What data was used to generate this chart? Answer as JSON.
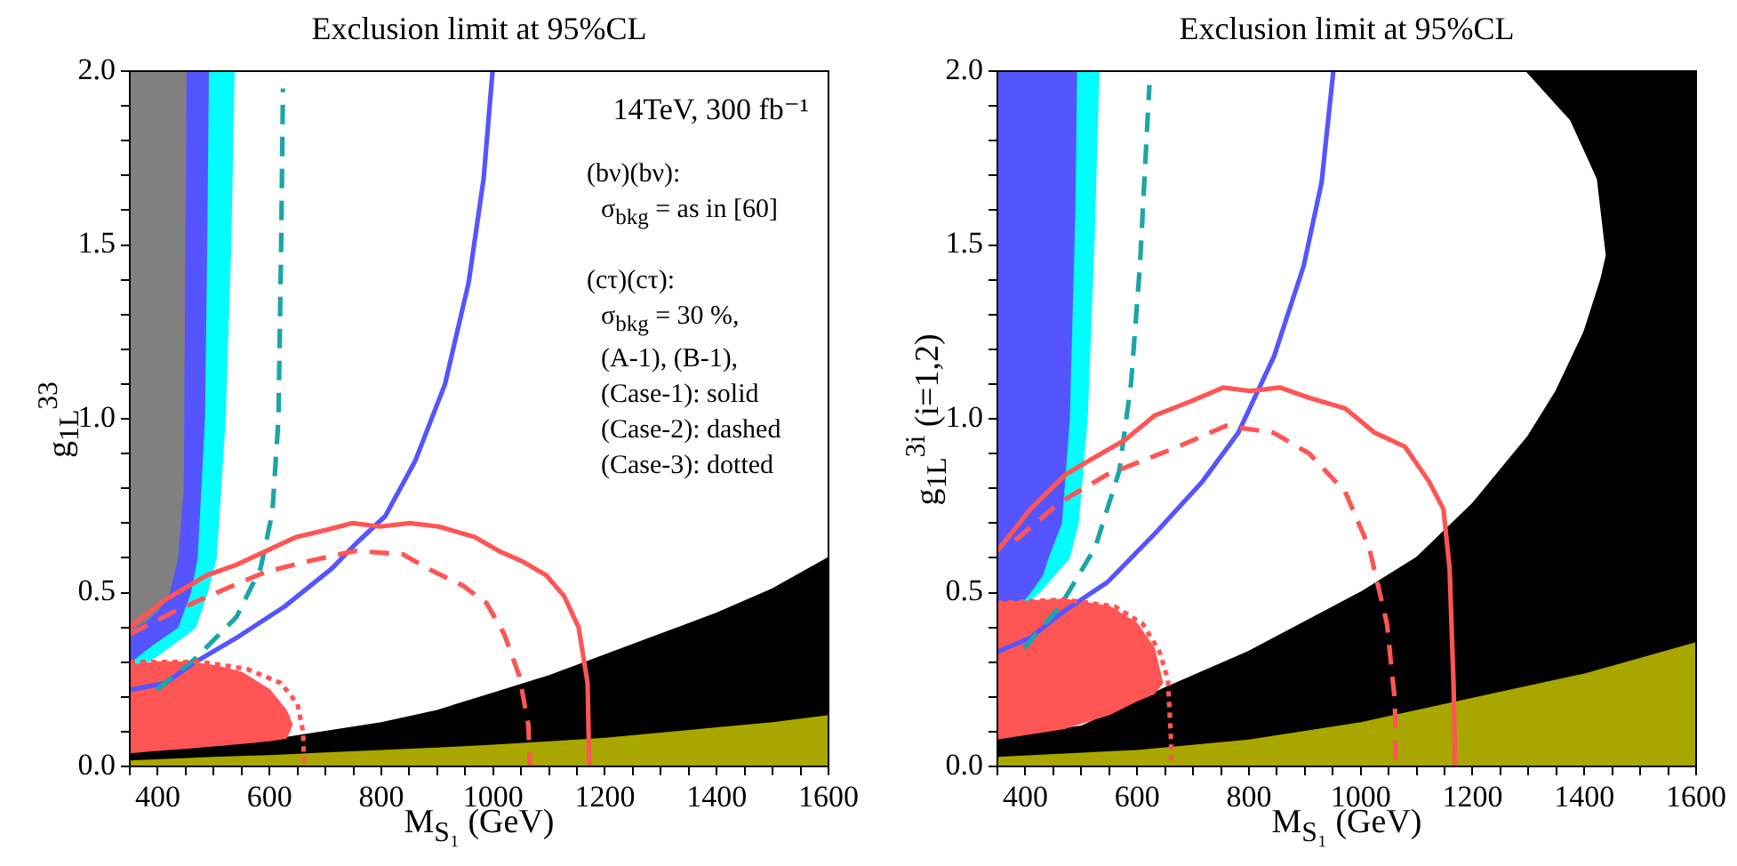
{
  "chart_data": [
    {
      "type": "line",
      "title": "Exclusion limit at 95%CL",
      "xlabel": "M$_{S₁}$  (GeV)",
      "ylabel": "g$_{1L}$$^{33}$",
      "xlim": [
        350,
        1600
      ],
      "ylim": [
        0,
        2
      ],
      "xticks": [
        {
          "value": 350,
          "label": null
        },
        400,
        {
          "value": 450,
          "label": null
        },
        {
          "value": 500,
          "label": null
        },
        {
          "value": 550,
          "label": null
        },
        600,
        {
          "value": 650,
          "label": null
        },
        {
          "value": 700,
          "label": null
        },
        {
          "value": 750,
          "label": null
        },
        800,
        {
          "value": 850,
          "label": null
        },
        {
          "value": 900,
          "label": null
        },
        {
          "value": 950,
          "label": null
        },
        1000,
        {
          "value": 1050,
          "label": null
        },
        {
          "value": 1100,
          "label": null
        },
        {
          "value": 1150,
          "label": null
        },
        1200,
        {
          "value": 1250,
          "label": null
        },
        {
          "value": 1300,
          "label": null
        },
        {
          "value": 1350,
          "label": null
        },
        1400,
        {
          "value": 1450,
          "label": null
        },
        {
          "value": 1500,
          "label": null
        },
        {
          "value": 1550,
          "label": null
        },
        1600
      ],
      "yticks": [
        {
          "value": 0,
          "label": "0.0"
        },
        {
          "value": 0.1,
          "label": null
        },
        {
          "value": 0.2,
          "label": null
        },
        {
          "value": 0.3,
          "label": null
        },
        {
          "value": 0.4,
          "label": null
        },
        {
          "value": 0.5,
          "label": "0.5"
        },
        {
          "value": 0.6,
          "label": null
        },
        {
          "value": 0.7,
          "label": null
        },
        {
          "value": 0.8,
          "label": null
        },
        {
          "value": 0.9,
          "label": null
        },
        {
          "value": 1,
          "label": "1.0"
        },
        {
          "value": 1.1,
          "label": null
        },
        {
          "value": 1.2,
          "label": null
        },
        {
          "value": 1.3,
          "label": null
        },
        {
          "value": 1.4,
          "label": null
        },
        {
          "value": 1.5,
          "label": "1.5"
        },
        {
          "value": 1.6,
          "label": null
        },
        {
          "value": 1.7,
          "label": null
        },
        {
          "value": 1.8,
          "label": null
        },
        {
          "value": 1.9,
          "label": null
        },
        {
          "value": 2,
          "label": "2.0"
        }
      ],
      "annotations": [
        "14TeV, 300 fb⁻¹",
        "(bν)(bν):",
        "σ$_{bkg}$ = as in [60]",
        "(cτ)(cτ):",
        "σ$_{bkg}$ = 30 %,",
        "(A-1), (B-1),",
        "(Case-1): solid",
        "(Case-2): dashed",
        "(Case-3): dotted"
      ],
      "series": [
        {
          "type": "area",
          "color": "#aaa600",
          "x": [
            350,
            500,
            600,
            700,
            800,
            900,
            1000,
            1100,
            1200,
            1300,
            1400,
            1500,
            1600,
            1600,
            350
          ],
          "values": [
            0.02,
            0.03,
            0.035,
            0.043,
            0.05,
            0.057,
            0.065,
            0.075,
            0.085,
            0.1,
            0.115,
            0.13,
            0.15,
            0,
            0
          ]
        },
        {
          "type": "area",
          "color": "#000000",
          "x": [
            350,
            500,
            600,
            700,
            800,
            900,
            1000,
            1100,
            1200,
            1300,
            1400,
            1500,
            1600,
            1600,
            1500,
            1400,
            1300,
            1200,
            1100,
            1000,
            900,
            800,
            700,
            600,
            500,
            350
          ],
          "values": [
            0.04,
            0.06,
            0.075,
            0.1,
            0.125,
            0.16,
            0.21,
            0.26,
            0.32,
            0.38,
            0.44,
            0.51,
            0.6,
            0.15,
            0.13,
            0.115,
            0.1,
            0.085,
            0.075,
            0.065,
            0.057,
            0.05,
            0.043,
            0.035,
            0.03,
            0.02
          ]
        },
        {
          "type": "area",
          "color": "#00ffff",
          "x": [
            350,
            536,
            530,
            520,
            504,
            488,
            467,
            400,
            380,
            350
          ],
          "values": [
            2,
            2,
            1.5,
            1,
            0.6,
            0.5,
            0.4,
            0.32,
            0.3,
            0.28
          ]
        },
        {
          "type": "area",
          "color": "#5555ff",
          "x": [
            350,
            490,
            487,
            483,
            470,
            458,
            435,
            390,
            350
          ],
          "values": [
            2,
            2,
            1.5,
            1,
            0.6,
            0.5,
            0.4,
            0.35,
            0.3
          ]
        },
        {
          "type": "area",
          "color": "#808080",
          "x": [
            350,
            450,
            445,
            435,
            420,
            400,
            380,
            360,
            350
          ],
          "values": [
            2,
            2,
            0.8,
            0.6,
            0.5,
            0.45,
            0.42,
            0.4,
            0.38
          ]
        },
        {
          "type": "area",
          "color": "#ff5555",
          "x": [
            350,
            400,
            450,
            500,
            550,
            600,
            630,
            640,
            630,
            600,
            550,
            500,
            450,
            400,
            350
          ],
          "values": [
            0.29,
            0.3,
            0.3,
            0.29,
            0.27,
            0.22,
            0.16,
            0.12,
            0.082,
            0.075,
            0.067,
            0.06,
            0.053,
            0.047,
            0.04
          ]
        },
        {
          "type": "line",
          "color": "#5555ff",
          "line_style": "solid",
          "x": [
            350,
            414,
            467,
            541,
            627,
            712,
            754,
            807,
            861,
            914,
            956,
            983,
            999
          ],
          "values": [
            0.22,
            0.24,
            0.3,
            0.37,
            0.46,
            0.57,
            0.64,
            0.72,
            0.88,
            1.1,
            1.39,
            1.69,
            2
          ]
        },
        {
          "type": "line",
          "color": "#1aa6a6",
          "line_style": "dashed",
          "x": [
            398,
            467,
            541,
            584,
            605,
            616,
            621,
            624
          ],
          "values": [
            0.22,
            0.31,
            0.43,
            0.57,
            0.73,
            1,
            1.52,
            1.95
          ]
        },
        {
          "type": "line",
          "color": "#ff5555",
          "line_style": "solid",
          "x": [
            350,
            414,
            488,
            541,
            594,
            648,
            701,
            749,
            797,
            851,
            903,
            967,
            1010,
            1052,
            1095,
            1127,
            1153,
            1169,
            1172
          ],
          "values": [
            0.4,
            0.48,
            0.55,
            0.58,
            0.62,
            0.66,
            0.68,
            0.7,
            0.69,
            0.7,
            0.69,
            0.66,
            0.62,
            0.59,
            0.55,
            0.49,
            0.4,
            0.24,
            0
          ]
        },
        {
          "type": "line",
          "color": "#ff5555",
          "line_style": "dashed",
          "x": [
            350,
            435,
            520,
            594,
            669,
            754,
            839,
            882,
            946,
            988,
            1020,
            1047,
            1063,
            1066
          ],
          "values": [
            0.38,
            0.45,
            0.51,
            0.56,
            0.59,
            0.62,
            0.61,
            0.57,
            0.52,
            0.47,
            0.38,
            0.26,
            0.12,
            0
          ]
        },
        {
          "type": "line",
          "color": "#ff5555",
          "line_style": "dotted",
          "x": [
            350,
            480,
            560,
            620,
            650,
            660,
            662
          ],
          "values": [
            0.3,
            0.3,
            0.28,
            0.24,
            0.18,
            0.1,
            0
          ]
        }
      ]
    },
    {
      "type": "line",
      "title": "Exclusion limit at 95%CL",
      "xlabel": "M$_{S₁}$  (GeV)",
      "ylabel": "g$_{1L}$$^{3i}$  (i=1,2)",
      "xlim": [
        350,
        1600
      ],
      "ylim": [
        0,
        2
      ],
      "xticks": [
        {
          "value": 350,
          "label": null
        },
        400,
        {
          "value": 450,
          "label": null
        },
        {
          "value": 500,
          "label": null
        },
        {
          "value": 550,
          "label": null
        },
        600,
        {
          "value": 650,
          "label": null
        },
        {
          "value": 700,
          "label": null
        },
        {
          "value": 750,
          "label": null
        },
        800,
        {
          "value": 850,
          "label": null
        },
        {
          "value": 900,
          "label": null
        },
        {
          "value": 950,
          "label": null
        },
        1000,
        {
          "value": 1050,
          "label": null
        },
        {
          "value": 1100,
          "label": null
        },
        {
          "value": 1150,
          "label": null
        },
        1200,
        {
          "value": 1250,
          "label": null
        },
        {
          "value": 1300,
          "label": null
        },
        {
          "value": 1350,
          "label": null
        },
        1400,
        {
          "value": 1450,
          "label": null
        },
        {
          "value": 1500,
          "label": null
        },
        {
          "value": 1550,
          "label": null
        },
        1600
      ],
      "yticks": [
        {
          "value": 0,
          "label": "0.0"
        },
        {
          "value": 0.1,
          "label": null
        },
        {
          "value": 0.2,
          "label": null
        },
        {
          "value": 0.3,
          "label": null
        },
        {
          "value": 0.4,
          "label": null
        },
        {
          "value": 0.5,
          "label": "0.5"
        },
        {
          "value": 0.6,
          "label": null
        },
        {
          "value": 0.7,
          "label": null
        },
        {
          "value": 0.8,
          "label": null
        },
        {
          "value": 0.9,
          "label": null
        },
        {
          "value": 1,
          "label": "1.0"
        },
        {
          "value": 1.1,
          "label": null
        },
        {
          "value": 1.2,
          "label": null
        },
        {
          "value": 1.3,
          "label": null
        },
        {
          "value": 1.4,
          "label": null
        },
        {
          "value": 1.5,
          "label": "1.5"
        },
        {
          "value": 1.6,
          "label": null
        },
        {
          "value": 1.7,
          "label": null
        },
        {
          "value": 1.8,
          "label": null
        },
        {
          "value": 1.9,
          "label": null
        },
        {
          "value": 2,
          "label": "2.0"
        }
      ],
      "series": [
        {
          "type": "area",
          "color": "#aaa600",
          "x": [
            350,
            600,
            800,
            1000,
            1200,
            1400,
            1600,
            1600,
            350
          ],
          "values": [
            0.03,
            0.05,
            0.08,
            0.13,
            0.2,
            0.27,
            0.36,
            0,
            0
          ]
        },
        {
          "type": "area",
          "color": "#000000",
          "x": [
            350,
            500,
            650,
            800,
            1000,
            1100,
            1200,
            1300,
            1350,
            1400,
            1430,
            1440,
            1424,
            1376,
            1297,
            1600,
            1600,
            1400,
            1200,
            1000,
            800,
            600,
            350
          ],
          "values": [
            0.08,
            0.115,
            0.225,
            0.33,
            0.5,
            0.6,
            0.755,
            0.95,
            1.08,
            1.25,
            1.4,
            1.47,
            1.69,
            1.86,
            2,
            2,
            0.36,
            0.27,
            0.2,
            0.13,
            0.08,
            0.05,
            0.03
          ]
        },
        {
          "type": "area",
          "color": "#00ffff",
          "x": [
            350,
            531,
            522,
            510,
            494,
            478,
            424,
            392,
            350
          ],
          "values": [
            2,
            2,
            1.5,
            1,
            0.7,
            0.6,
            0.5,
            0.46,
            0.46
          ]
        },
        {
          "type": "area",
          "color": "#5555ff",
          "x": [
            350,
            491,
            488,
            478,
            464,
            440,
            430,
            408,
            387,
            350
          ],
          "values": [
            2,
            2,
            1.6,
            1,
            0.7,
            0.6,
            0.55,
            0.5,
            0.46,
            0.46
          ]
        },
        {
          "type": "area",
          "color": "#ff5555",
          "x": [
            350,
            470,
            550,
            600,
            630,
            645,
            630,
            600,
            550,
            470,
            350
          ],
          "values": [
            0.47,
            0.48,
            0.46,
            0.41,
            0.34,
            0.24,
            0.21,
            0.19,
            0.15,
            0.11,
            0.08
          ]
        },
        {
          "type": "line",
          "color": "#5555ff",
          "line_style": "solid",
          "x": [
            350,
            409,
            472,
            547,
            632,
            717,
            781,
            845,
            898,
            930,
            951
          ],
          "values": [
            0.33,
            0.37,
            0.45,
            0.53,
            0.67,
            0.82,
            0.96,
            1.18,
            1.44,
            1.68,
            2
          ]
        },
        {
          "type": "line",
          "color": "#1aa6a6",
          "line_style": "dashed",
          "x": [
            398,
            462,
            525,
            568,
            589,
            605,
            616,
            622
          ],
          "values": [
            0.34,
            0.46,
            0.63,
            0.85,
            1.1,
            1.44,
            1.78,
            1.96
          ]
        },
        {
          "type": "line",
          "color": "#ff5555",
          "line_style": "solid",
          "x": [
            350,
            409,
            472,
            525,
            579,
            632,
            696,
            754,
            802,
            855,
            908,
            972,
            1025,
            1079,
            1122,
            1148,
            1159,
            1166,
            1169
          ],
          "values": [
            0.62,
            0.74,
            0.84,
            0.89,
            0.94,
            1.01,
            1.05,
            1.09,
            1.08,
            1.09,
            1.06,
            1.03,
            0.96,
            0.92,
            0.82,
            0.74,
            0.57,
            0.24,
            0
          ]
        },
        {
          "type": "line",
          "color": "#ff5555",
          "line_style": "dashed",
          "x": [
            382,
            462,
            547,
            674,
            759,
            844,
            908,
            972,
            1015,
            1047,
            1061,
            1063
          ],
          "values": [
            0.65,
            0.76,
            0.84,
            0.92,
            0.98,
            0.96,
            0.9,
            0.79,
            0.63,
            0.41,
            0.19,
            0
          ]
        },
        {
          "type": "line",
          "color": "#ff5555",
          "line_style": "dotted",
          "x": [
            350,
            470,
            560,
            610,
            640,
            655,
            660,
            662
          ],
          "values": [
            0.47,
            0.48,
            0.46,
            0.41,
            0.33,
            0.25,
            0.1,
            0
          ]
        }
      ]
    }
  ]
}
